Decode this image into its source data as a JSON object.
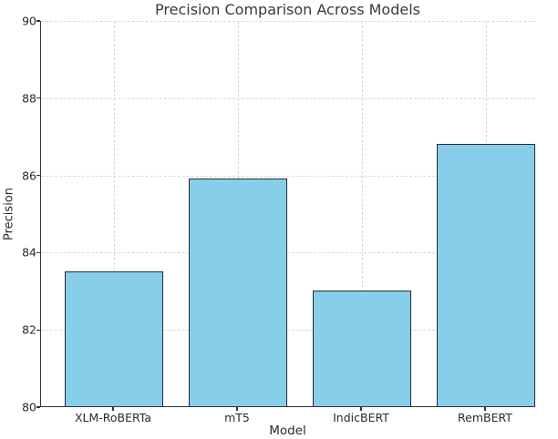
{
  "chart_data": {
    "type": "bar",
    "title": "Precision Comparison Across Models",
    "xlabel": "Model",
    "ylabel": "Precision",
    "categories": [
      "XLM-RoBERTa",
      "mT5",
      "IndicBERT",
      "RemBERT"
    ],
    "values": [
      83.5,
      85.9,
      83.0,
      86.8
    ],
    "ylim": [
      80,
      90
    ],
    "yticks": [
      80,
      82,
      84,
      86,
      88,
      90
    ],
    "grid": "dashed light-gray, horizontal and vertical",
    "legend": "none",
    "bar_color": "#87CEEB",
    "bar_edge_color": "#26292f",
    "background_color": "#ffffff"
  }
}
